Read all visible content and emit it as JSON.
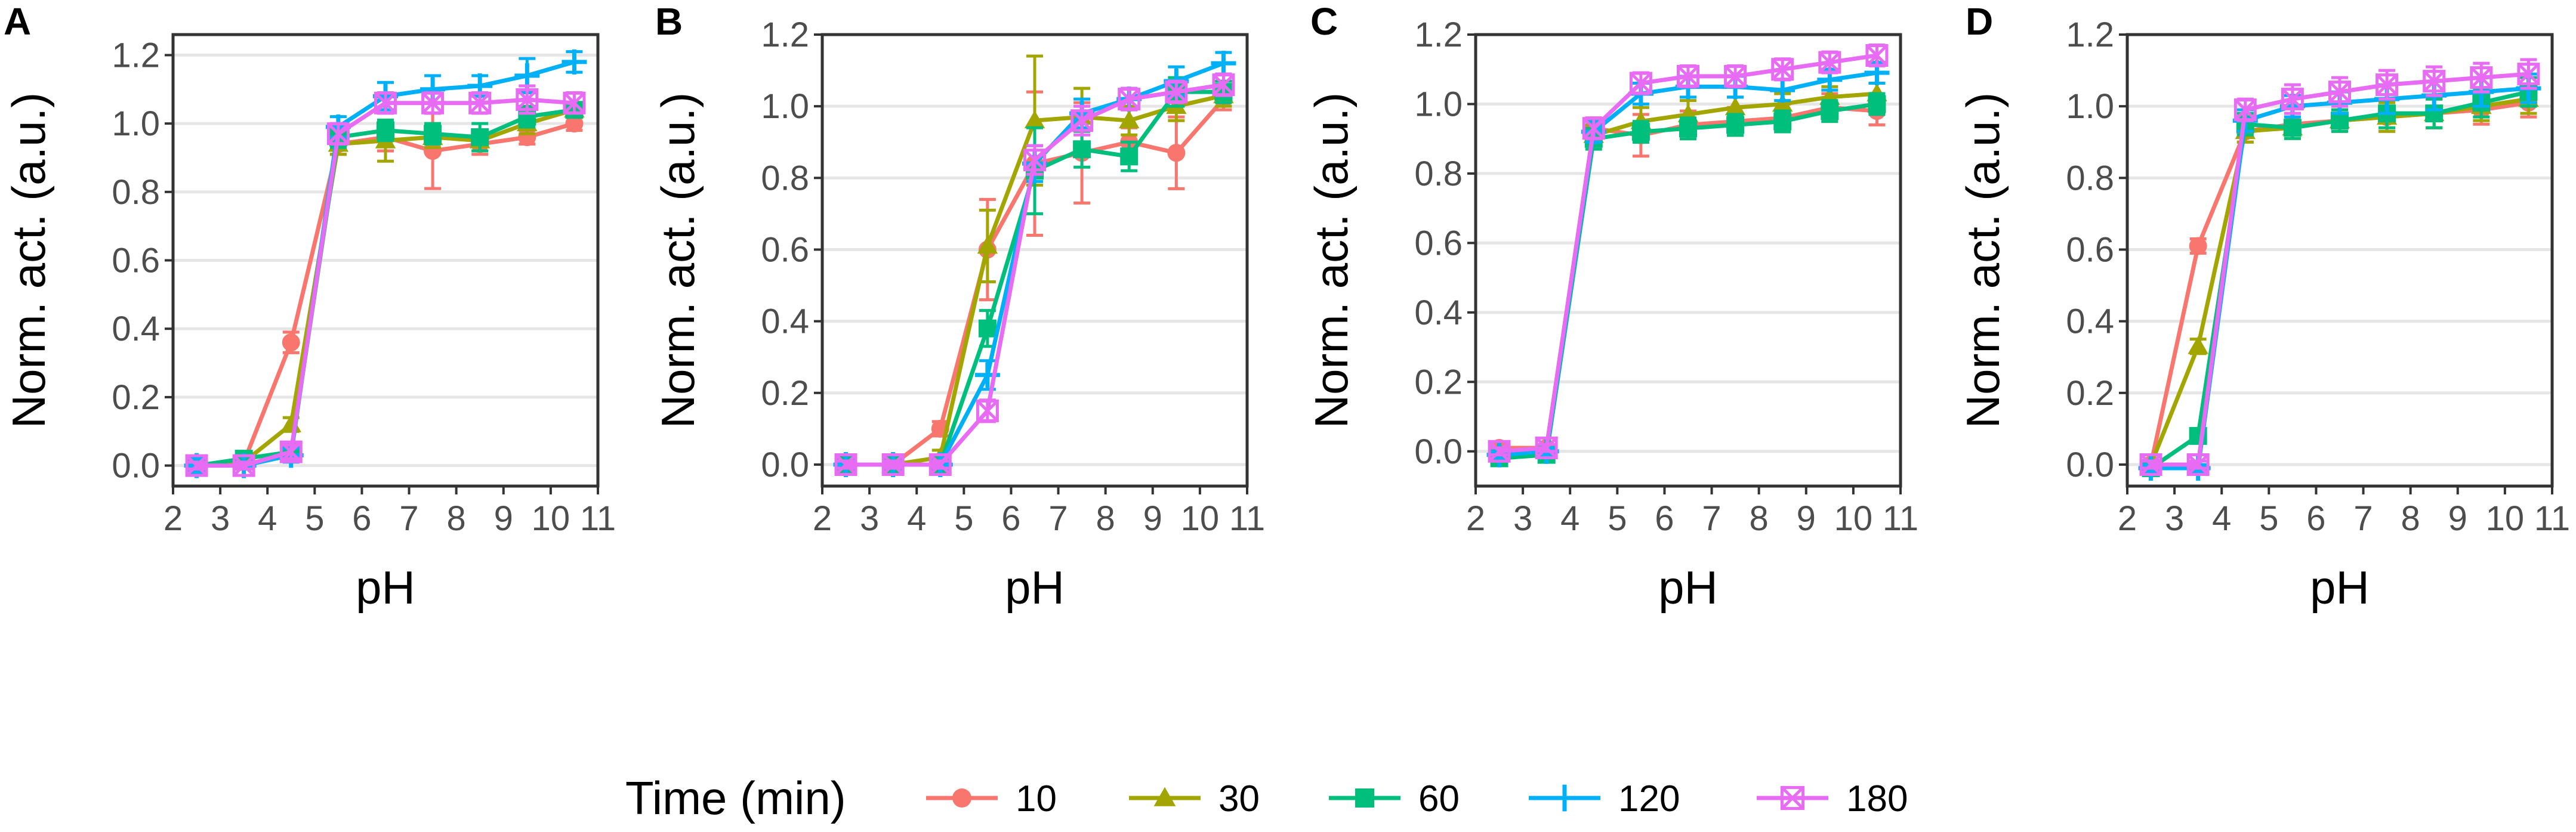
{
  "colors": {
    "10": "#F8766D",
    "30": "#A3A500",
    "60": "#00BF7D",
    "120": "#00B0F6",
    "180": "#E76BF3",
    "grid": "#e6e6e6",
    "frame": "#333333",
    "tick_text": "#4d4d4d"
  },
  "legend": {
    "title": "Time (min)",
    "entries": [
      {
        "label": "10",
        "color": "#F8766D",
        "shape": "circle"
      },
      {
        "label": "30",
        "color": "#A3A500",
        "shape": "triangle"
      },
      {
        "label": "60",
        "color": "#00BF7D",
        "shape": "square"
      },
      {
        "label": "120",
        "color": "#00B0F6",
        "shape": "plus"
      },
      {
        "label": "180",
        "color": "#E76BF3",
        "shape": "square-cross"
      }
    ]
  },
  "chart_data": [
    {
      "panel": "A",
      "type": "line",
      "title": "",
      "xlabel": "pH",
      "ylabel": "Norm. act. (a.u.)",
      "xlim": [
        2,
        11
      ],
      "ylim": [
        -0.06,
        1.26
      ],
      "xticks": [
        2,
        3,
        4,
        5,
        6,
        7,
        8,
        9,
        10,
        11
      ],
      "yticks": [
        0.0,
        0.2,
        0.4,
        0.6,
        0.8,
        1.0,
        1.2
      ],
      "ytick_labels": [
        "0.0",
        "0.2",
        "0.4",
        "0.6",
        "0.8",
        "1.0",
        "1.2"
      ],
      "x": [
        2.5,
        3.5,
        4.5,
        5.5,
        6.5,
        7.5,
        8.5,
        9.5,
        10.5
      ],
      "series": [
        {
          "name": "10",
          "values": [
            0.0,
            0.01,
            0.36,
            0.94,
            0.96,
            0.92,
            0.94,
            0.96,
            1.0
          ],
          "errors": [
            0.01,
            0.01,
            0.03,
            0.03,
            0.04,
            0.11,
            0.03,
            0.02,
            0.02
          ]
        },
        {
          "name": "30",
          "values": [
            0.0,
            0.01,
            0.12,
            0.94,
            0.95,
            0.96,
            0.95,
            1.0,
            1.04
          ],
          "errors": [
            0.01,
            0.01,
            0.02,
            0.03,
            0.06,
            0.03,
            0.03,
            0.03,
            0.02
          ]
        },
        {
          "name": "60",
          "values": [
            0.0,
            0.02,
            0.04,
            0.96,
            0.98,
            0.97,
            0.96,
            1.02,
            1.04
          ],
          "errors": [
            0.01,
            0.01,
            0.02,
            0.03,
            0.03,
            0.03,
            0.04,
            0.03,
            0.02
          ]
        },
        {
          "name": "120",
          "values": [
            0.0,
            0.0,
            0.03,
            0.99,
            1.08,
            1.1,
            1.11,
            1.14,
            1.18
          ],
          "errors": [
            0.02,
            0.01,
            0.02,
            0.03,
            0.04,
            0.04,
            0.03,
            0.05,
            0.03
          ]
        },
        {
          "name": "180",
          "values": [
            0.0,
            0.0,
            0.04,
            0.97,
            1.06,
            1.06,
            1.06,
            1.07,
            1.06
          ],
          "errors": [
            0.01,
            0.01,
            0.02,
            0.03,
            0.03,
            0.03,
            0.03,
            0.04,
            0.03
          ]
        }
      ]
    },
    {
      "panel": "B",
      "type": "line",
      "title": "",
      "xlabel": "pH",
      "ylabel": "Norm. act. (a.u.)",
      "xlim": [
        2,
        11
      ],
      "ylim": [
        -0.06,
        1.2
      ],
      "xticks": [
        2,
        3,
        4,
        5,
        6,
        7,
        8,
        9,
        10,
        11
      ],
      "yticks": [
        0.0,
        0.2,
        0.4,
        0.6,
        0.8,
        1.0,
        1.2
      ],
      "ytick_labels": [
        "0.0",
        "0.2",
        "0.4",
        "0.6",
        "0.8",
        "1.0",
        "1.2"
      ],
      "x": [
        2.5,
        3.5,
        4.5,
        5.5,
        6.5,
        7.5,
        8.5,
        9.5,
        10.5
      ],
      "series": [
        {
          "name": "10",
          "values": [
            0.0,
            0.0,
            0.1,
            0.6,
            0.84,
            0.87,
            0.9,
            0.87,
            1.02
          ],
          "errors": [
            0.01,
            0.01,
            0.02,
            0.14,
            0.2,
            0.14,
            0.04,
            0.1,
            0.03
          ]
        },
        {
          "name": "30",
          "values": [
            0.0,
            0.0,
            0.02,
            0.61,
            0.96,
            0.97,
            0.96,
            1.0,
            1.03
          ],
          "errors": [
            0.01,
            0.01,
            0.02,
            0.1,
            0.18,
            0.08,
            0.04,
            0.04,
            0.03
          ]
        },
        {
          "name": "60",
          "values": [
            0.0,
            0.0,
            0.0,
            0.38,
            0.82,
            0.88,
            0.86,
            1.04,
            1.04
          ],
          "errors": [
            0.01,
            0.01,
            0.01,
            0.05,
            0.12,
            0.05,
            0.04,
            0.04,
            0.03
          ]
        },
        {
          "name": "120",
          "values": [
            0.0,
            0.0,
            0.0,
            0.25,
            0.84,
            0.98,
            1.02,
            1.07,
            1.12
          ],
          "errors": [
            0.01,
            0.01,
            0.01,
            0.04,
            0.05,
            0.04,
            0.03,
            0.04,
            0.03
          ]
        },
        {
          "name": "180",
          "values": [
            0.0,
            0.0,
            0.0,
            0.15,
            0.85,
            0.96,
            1.02,
            1.04,
            1.06
          ],
          "errors": [
            0.01,
            0.01,
            0.01,
            0.03,
            0.04,
            0.04,
            0.03,
            0.03,
            0.03
          ]
        }
      ]
    },
    {
      "panel": "C",
      "type": "line",
      "title": "",
      "xlabel": "pH",
      "ylabel": "Norm. act. (a.u.)",
      "xlim": [
        2,
        11
      ],
      "ylim": [
        -0.1,
        1.2
      ],
      "xticks": [
        2,
        3,
        4,
        5,
        6,
        7,
        8,
        9,
        10,
        11
      ],
      "yticks": [
        0.0,
        0.2,
        0.4,
        0.6,
        0.8,
        1.0,
        1.2
      ],
      "ytick_labels": [
        "0.0",
        "0.2",
        "0.4",
        "0.6",
        "0.8",
        "1.0",
        "1.2"
      ],
      "x": [
        2.5,
        3.5,
        4.5,
        5.5,
        6.5,
        7.5,
        8.5,
        9.5,
        10.5
      ],
      "series": [
        {
          "name": "10",
          "values": [
            0.01,
            0.01,
            0.93,
            0.91,
            0.94,
            0.95,
            0.96,
            0.99,
            0.98
          ],
          "errors": [
            0.01,
            0.01,
            0.03,
            0.06,
            0.04,
            0.04,
            0.04,
            0.04,
            0.04
          ]
        },
        {
          "name": "30",
          "values": [
            0.0,
            0.01,
            0.91,
            0.95,
            0.97,
            0.99,
            1.0,
            1.02,
            1.03
          ],
          "errors": [
            0.01,
            0.01,
            0.03,
            0.04,
            0.04,
            0.03,
            0.03,
            0.03,
            0.03
          ]
        },
        {
          "name": "60",
          "values": [
            -0.02,
            -0.01,
            0.9,
            0.92,
            0.93,
            0.94,
            0.95,
            0.98,
            1.0
          ],
          "errors": [
            0.01,
            0.01,
            0.03,
            0.03,
            0.03,
            0.03,
            0.03,
            0.03,
            0.03
          ]
        },
        {
          "name": "120",
          "values": [
            -0.01,
            0.0,
            0.92,
            1.03,
            1.05,
            1.05,
            1.04,
            1.07,
            1.09
          ],
          "errors": [
            0.01,
            0.01,
            0.03,
            0.03,
            0.03,
            0.03,
            0.03,
            0.03,
            0.03
          ]
        },
        {
          "name": "180",
          "values": [
            0.0,
            0.01,
            0.93,
            1.06,
            1.08,
            1.08,
            1.1,
            1.12,
            1.14
          ],
          "errors": [
            0.01,
            0.01,
            0.03,
            0.03,
            0.03,
            0.03,
            0.03,
            0.03,
            0.03
          ]
        }
      ]
    },
    {
      "panel": "D",
      "type": "line",
      "title": "",
      "xlabel": "pH",
      "ylabel": "Norm. act. (a.u.)",
      "xlim": [
        2,
        11
      ],
      "ylim": [
        -0.06,
        1.2
      ],
      "xticks": [
        2,
        3,
        4,
        5,
        6,
        7,
        8,
        9,
        10,
        11
      ],
      "yticks": [
        0.0,
        0.2,
        0.4,
        0.6,
        0.8,
        1.0,
        1.2
      ],
      "ytick_labels": [
        "0.0",
        "0.2",
        "0.4",
        "0.6",
        "0.8",
        "1.0",
        "1.2"
      ],
      "x": [
        2.5,
        3.5,
        4.5,
        5.5,
        6.5,
        7.5,
        8.5,
        9.5,
        10.5
      ],
      "series": [
        {
          "name": "10",
          "values": [
            0.0,
            0.61,
            0.93,
            0.95,
            0.96,
            0.97,
            0.98,
            0.99,
            1.01
          ],
          "errors": [
            0.01,
            0.02,
            0.03,
            0.03,
            0.03,
            0.04,
            0.04,
            0.04,
            0.04
          ]
        },
        {
          "name": "30",
          "values": [
            0.0,
            0.33,
            0.93,
            0.94,
            0.96,
            0.97,
            0.98,
            1.0,
            1.02
          ],
          "errors": [
            0.01,
            0.02,
            0.03,
            0.03,
            0.03,
            0.04,
            0.04,
            0.04,
            0.04
          ]
        },
        {
          "name": "60",
          "values": [
            -0.01,
            0.08,
            0.95,
            0.94,
            0.96,
            0.98,
            0.98,
            1.01,
            1.04
          ],
          "errors": [
            0.01,
            0.02,
            0.03,
            0.03,
            0.03,
            0.04,
            0.04,
            0.04,
            0.04
          ]
        },
        {
          "name": "120",
          "values": [
            -0.01,
            -0.01,
            0.96,
            1.0,
            1.01,
            1.02,
            1.03,
            1.04,
            1.05
          ],
          "errors": [
            0.01,
            0.01,
            0.03,
            0.03,
            0.03,
            0.04,
            0.04,
            0.04,
            0.04
          ]
        },
        {
          "name": "180",
          "values": [
            0.0,
            0.0,
            0.99,
            1.02,
            1.04,
            1.06,
            1.07,
            1.08,
            1.09
          ],
          "errors": [
            0.01,
            0.01,
            0.03,
            0.04,
            0.04,
            0.04,
            0.04,
            0.04,
            0.04
          ]
        }
      ]
    }
  ]
}
